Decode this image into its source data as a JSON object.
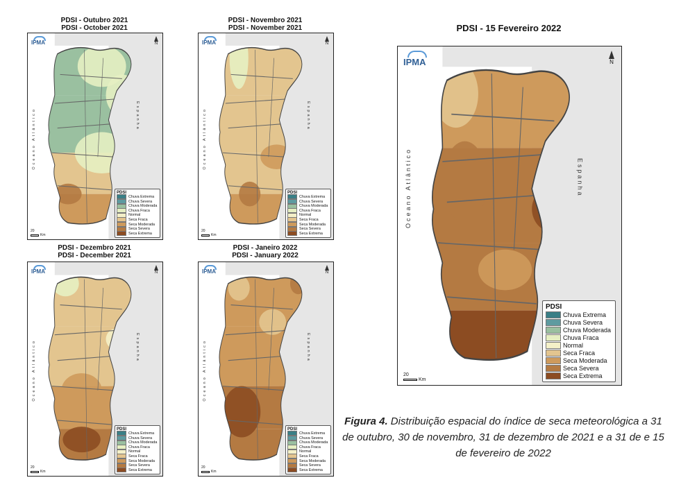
{
  "colors": {
    "chuva_extrema": "#3a7f86",
    "chuva_severa": "#5e9ba0",
    "chuva_moderada": "#9ac0a0",
    "chuva_fraca": "#e6efc2",
    "normal": "#f4f0c8",
    "seca_fraca": "#e3c58f",
    "seca_moderada": "#ce9a5c",
    "seca_severa": "#b47a42",
    "seca_extrema": "#8c4c22",
    "land_grey": "#e6e6e6",
    "border": "#555555"
  },
  "legend": {
    "title": "PDSI",
    "items": [
      "Chuva Extrema",
      "Chuva Severa",
      "Chuva Moderada",
      "Chuva Fraca",
      "Normal",
      "Seca Fraca",
      "Seca Moderada",
      "Seca Severa",
      "Seca Extrema"
    ],
    "swatch_colors": [
      "#3a7f86",
      "#5e9ba0",
      "#9ac0a0",
      "#e6efc2",
      "#f4f0c8",
      "#e3c58f",
      "#ce9a5c",
      "#b47a42",
      "#8c4c22"
    ]
  },
  "map_labels": {
    "logo": "IPMA",
    "north": "N",
    "ocean": "Oceano Atlântico",
    "spain": "Espanha",
    "scale": "20",
    "scale_unit": "Km"
  },
  "panels": [
    {
      "id": "oct",
      "title_pt": "PDSI - Outubro 2021",
      "title_en": "PDSI - October 2021"
    },
    {
      "id": "nov",
      "title_pt": "PDSI - Novembro 2021",
      "title_en": "PDSI - November 2021"
    },
    {
      "id": "dec",
      "title_pt": "PDSI - Dezembro 2021",
      "title_en": "PDSI - December 2021"
    },
    {
      "id": "jan",
      "title_pt": "PDSI - Janeiro 2022",
      "title_en": "PDSI - January 2022"
    },
    {
      "id": "feb",
      "title_pt": "PDSI - 15 Fevereiro 2022"
    }
  ],
  "caption": {
    "label": "Figura 4.",
    "text": " Distribuição espacial do índice de seca meteorológica a 31 de outubro, 30 de novembro, 31 de dezembro de 2021 e a 31 de e 15 de fevereiro de 2022"
  }
}
